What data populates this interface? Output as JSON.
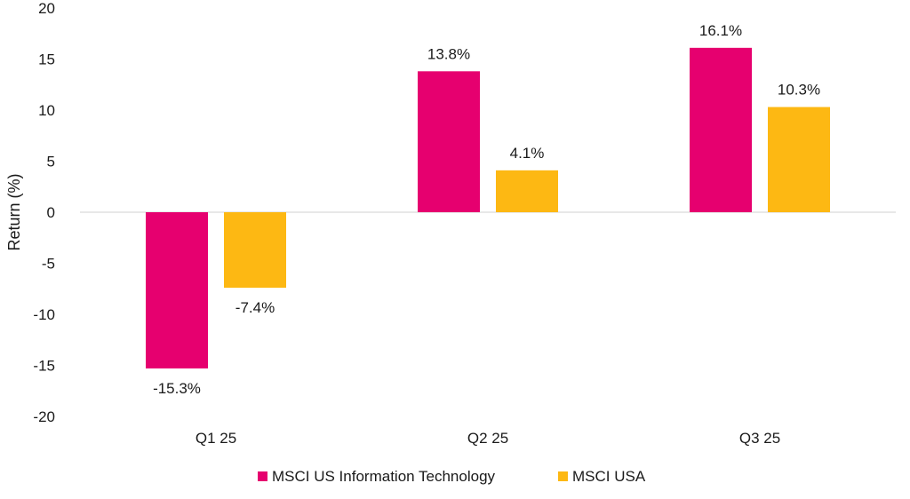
{
  "chart_data": {
    "type": "bar",
    "title": "",
    "xlabel": "",
    "ylabel": "Return (%)",
    "ylim": [
      -20,
      20
    ],
    "yticks": [
      20,
      15,
      10,
      5,
      0,
      -5,
      -10,
      -15,
      -20
    ],
    "categories": [
      "Q1 25",
      "Q2 25",
      "Q3 25"
    ],
    "series": [
      {
        "name": "MSCI US Information Technology",
        "color": "#E6006F",
        "values": [
          -15.3,
          13.8,
          16.1
        ],
        "labels": [
          "-15.3%",
          "13.8%",
          "16.1%"
        ]
      },
      {
        "name": "MSCI USA",
        "color": "#FDB813",
        "values": [
          -7.4,
          4.1,
          10.3
        ],
        "labels": [
          "-7.4%",
          "4.1%",
          "10.3%"
        ]
      }
    ],
    "legend_position": "bottom"
  }
}
